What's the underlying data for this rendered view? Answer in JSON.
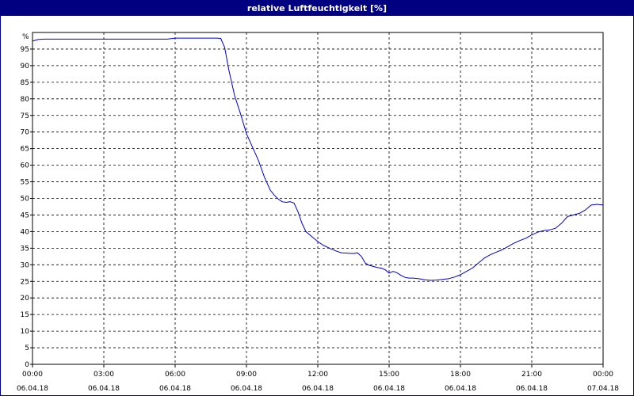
{
  "window": {
    "title": "relative Luftfeuchtigkeit [%]"
  },
  "chart_data": {
    "type": "line",
    "title": "relative Luftfeuchtigkeit [%]",
    "ylabel": "%",
    "xlabel": "",
    "ylim": [
      0,
      100
    ],
    "yticks": [
      0,
      5,
      10,
      15,
      20,
      25,
      30,
      35,
      40,
      45,
      50,
      55,
      60,
      65,
      70,
      75,
      80,
      85,
      90,
      95
    ],
    "xlim": [
      "06.04.18 00:00",
      "07.04.18 00:00"
    ],
    "xticks": [
      {
        "time": "00:00",
        "date": "06.04.18"
      },
      {
        "time": "03:00",
        "date": "06.04.18"
      },
      {
        "time": "06:00",
        "date": "06.04.18"
      },
      {
        "time": "09:00",
        "date": "06.04.18"
      },
      {
        "time": "12:00",
        "date": "06.04.18"
      },
      {
        "time": "15:00",
        "date": "06.04.18"
      },
      {
        "time": "18:00",
        "date": "06.04.18"
      },
      {
        "time": "21:00",
        "date": "06.04.18"
      },
      {
        "time": "00:00",
        "date": "07.04.18"
      }
    ],
    "grid": true,
    "line_color": "#0000c0",
    "series": [
      {
        "x": [
          "00:00",
          "00:15",
          "00:30",
          "01:00",
          "02:00",
          "03:00",
          "04:00",
          "05:00",
          "05:40",
          "06:00",
          "06:30",
          "07:00",
          "07:30",
          "07:45",
          "07:55",
          "08:05",
          "08:15",
          "08:30",
          "08:45",
          "09:00",
          "09:15",
          "09:30",
          "09:45",
          "10:00",
          "10:10",
          "10:20",
          "10:30",
          "10:40",
          "10:50",
          "11:00",
          "11:10",
          "11:20",
          "11:30",
          "11:45",
          "12:00",
          "12:15",
          "12:30",
          "12:45",
          "13:00",
          "13:15",
          "13:30",
          "13:40",
          "13:50",
          "14:00",
          "14:10",
          "14:20",
          "14:30",
          "14:40",
          "14:50",
          "15:00",
          "15:10",
          "15:20",
          "15:30",
          "15:40",
          "15:50",
          "16:00",
          "16:15",
          "16:30",
          "16:45",
          "17:00",
          "17:15",
          "17:30",
          "17:45",
          "18:00",
          "18:15",
          "18:30",
          "18:45",
          "19:00",
          "19:15",
          "19:30",
          "19:45",
          "20:00",
          "20:15",
          "20:30",
          "20:45",
          "21:00",
          "21:15",
          "21:30",
          "21:45",
          "22:00",
          "22:15",
          "22:30",
          "22:45",
          "23:00",
          "23:15",
          "23:30",
          "23:45",
          "24:00"
        ],
        "values": [
          97.4,
          97.9,
          98.0,
          98.0,
          98.0,
          98.0,
          98.0,
          98.0,
          98.0,
          98.3,
          98.3,
          98.3,
          98.3,
          98.3,
          98.2,
          95.5,
          89.0,
          81.0,
          75.5,
          69.5,
          65.5,
          61.5,
          56.5,
          52.5,
          51.0,
          49.8,
          49.0,
          48.8,
          49.0,
          48.6,
          46.0,
          42.5,
          40.0,
          38.5,
          37.0,
          35.8,
          35.0,
          34.2,
          33.6,
          33.5,
          33.4,
          33.6,
          32.5,
          30.5,
          29.8,
          29.5,
          29.2,
          29.0,
          28.5,
          27.5,
          28.0,
          27.6,
          26.8,
          26.2,
          26.0,
          26.0,
          25.8,
          25.5,
          25.3,
          25.4,
          25.6,
          25.8,
          26.3,
          27.0,
          28.0,
          29.0,
          30.5,
          32.0,
          33.0,
          33.8,
          34.5,
          35.5,
          36.5,
          37.3,
          38.0,
          39.0,
          39.8,
          40.3,
          40.5,
          41.0,
          42.5,
          44.5,
          45.0,
          45.5,
          46.5,
          48.0,
          48.2,
          48.0
        ]
      }
    ]
  }
}
